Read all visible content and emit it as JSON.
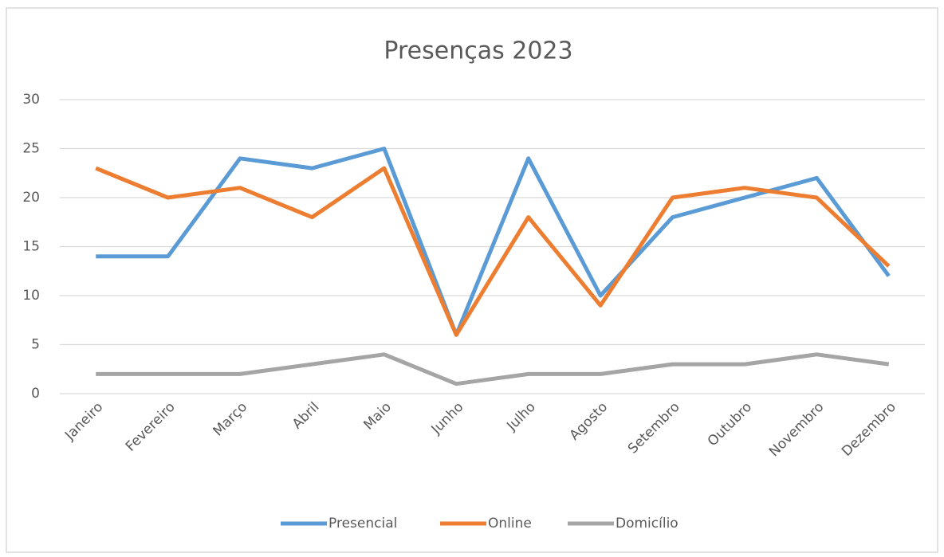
{
  "chart_data": {
    "type": "line",
    "title": "Presenças 2023",
    "categories": [
      "Janeiro",
      "Fevereiro",
      "Março",
      "Abril",
      "Maio",
      "Junho",
      "Julho",
      "Agosto",
      "Setembro",
      "Outubro",
      "Novembro",
      "Dezembro"
    ],
    "series": [
      {
        "name": "Presencial",
        "color": "#5b9bd5",
        "values": [
          14,
          14,
          24,
          23,
          25,
          6,
          24,
          10,
          18,
          20,
          22,
          12
        ]
      },
      {
        "name": "Online",
        "color": "#ed7d31",
        "values": [
          23,
          20,
          21,
          18,
          23,
          6,
          18,
          9,
          20,
          21,
          20,
          13
        ]
      },
      {
        "name": "Domicílio",
        "color": "#a5a5a5",
        "values": [
          2,
          2,
          2,
          3,
          4,
          1,
          2,
          2,
          3,
          3,
          4,
          3
        ]
      }
    ],
    "ylim": [
      0,
      30
    ],
    "yticks": [
      0,
      5,
      10,
      15,
      20,
      25,
      30
    ],
    "grid": true,
    "legend": "bottom"
  }
}
